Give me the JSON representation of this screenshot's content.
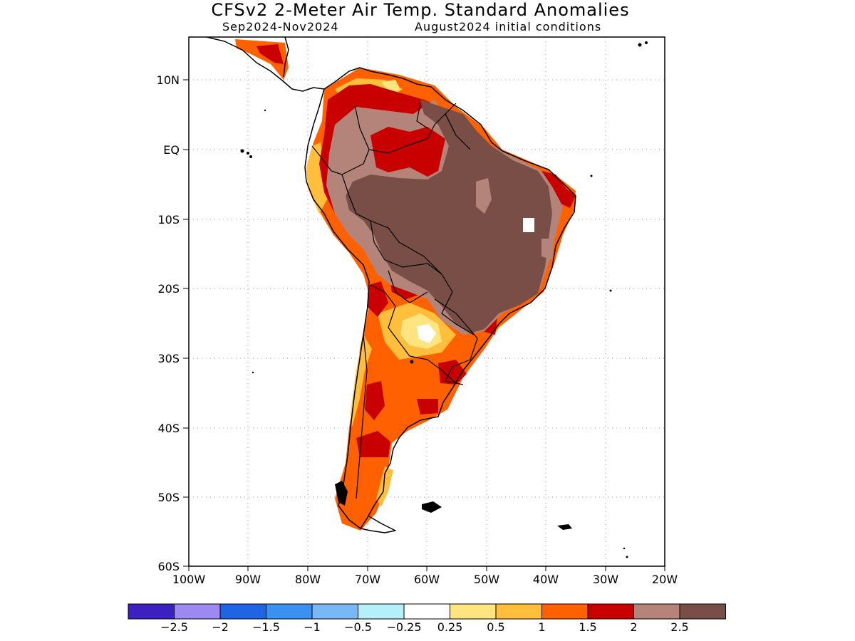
{
  "title": "CFSv2 2-Meter Air Temp. Standard Anomalies",
  "subtitle": "Sep2024-Nov2024",
  "conditions": "August2024 initial conditions",
  "map": {
    "region": "South America",
    "projection": "lat-lon",
    "lon_range": [
      -100,
      -20
    ],
    "lat_range": [
      -60,
      15
    ],
    "grid": "dotted",
    "lon_labels": [
      "100W",
      "90W",
      "80W",
      "70W",
      "60W",
      "50W",
      "40W",
      "30W",
      "20W"
    ],
    "lat_labels": [
      "10N",
      "EQ",
      "10S",
      "20S",
      "30S",
      "40S",
      "50S",
      "60S"
    ]
  },
  "colorbar": {
    "colors": [
      "#3c21bf",
      "#9c8af0",
      "#1f64e0",
      "#3a92f0",
      "#78b8f5",
      "#b4f0fa",
      "#ffffff",
      "#ffe480",
      "#ffbe3c",
      "#ff6000",
      "#c80000",
      "#b4847a",
      "#784e46"
    ],
    "labels": [
      "-2.5",
      "-2",
      "-1.5",
      "-1",
      "-0.5",
      "-0.25",
      "0.25",
      "0.5",
      "1",
      "1.5",
      "2",
      "2.5"
    ]
  },
  "anomaly_regions": [
    {
      "area": "Central & Eastern Brazil",
      "category": ">2.5"
    },
    {
      "area": "Amazon / Andes",
      "category": "2-2.5"
    },
    {
      "area": "Northern South America",
      "category": "1.5-2"
    },
    {
      "area": "Argentina",
      "category": "1-1.5"
    },
    {
      "area": "Northern Argentina / Paraguay",
      "category": "0.25-1"
    }
  ]
}
